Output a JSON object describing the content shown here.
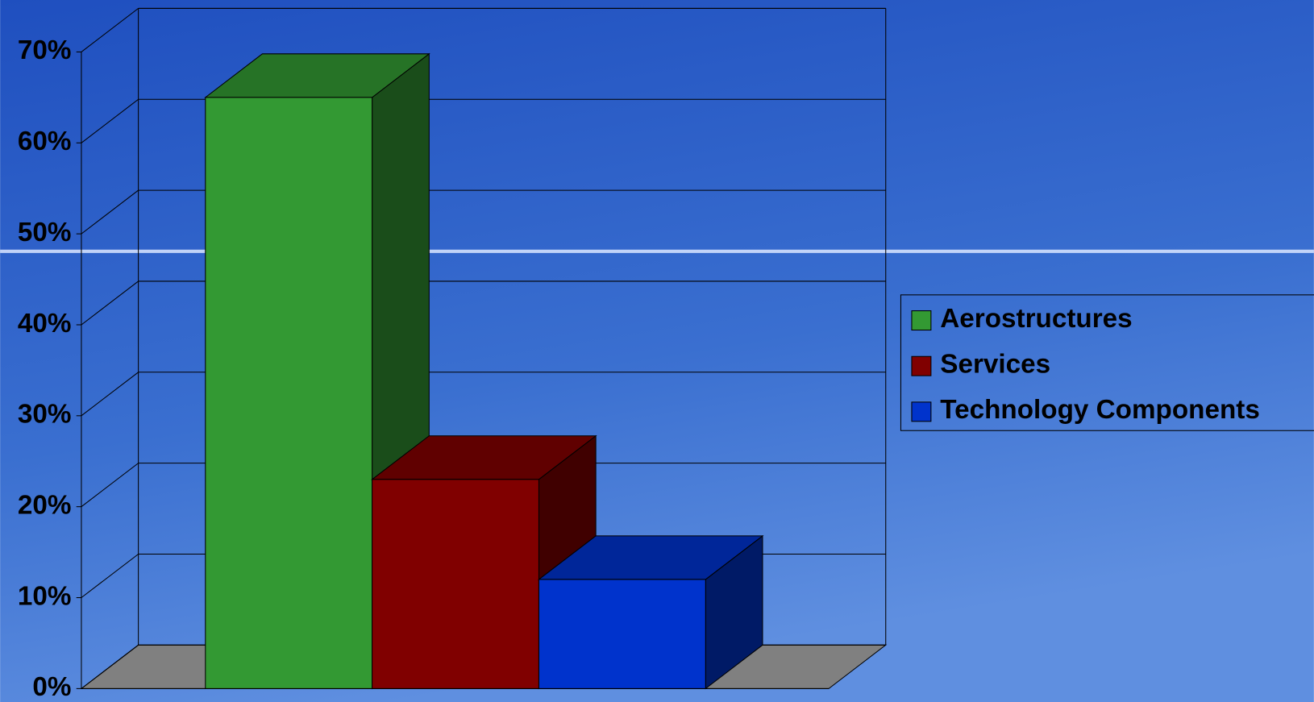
{
  "chart_data": {
    "type": "bar3d",
    "series": [
      {
        "name": "Aerostructures",
        "color": "#339933",
        "values": [
          65
        ]
      },
      {
        "name": "Services",
        "color": "#800000",
        "values": [
          23
        ]
      },
      {
        "name": "Technology Components",
        "color": "#0033cc",
        "values": [
          12
        ]
      }
    ],
    "ylim": [
      0,
      70
    ],
    "yticks": [
      {
        "value": 0,
        "label": "0%"
      },
      {
        "value": 10,
        "label": "10%"
      },
      {
        "value": 20,
        "label": "20%"
      },
      {
        "value": 30,
        "label": "30%"
      },
      {
        "value": 40,
        "label": "40%"
      },
      {
        "value": 50,
        "label": "50%"
      },
      {
        "value": 60,
        "label": "60%"
      },
      {
        "value": 70,
        "label": "70%"
      }
    ],
    "grid": true,
    "legend": "right"
  }
}
